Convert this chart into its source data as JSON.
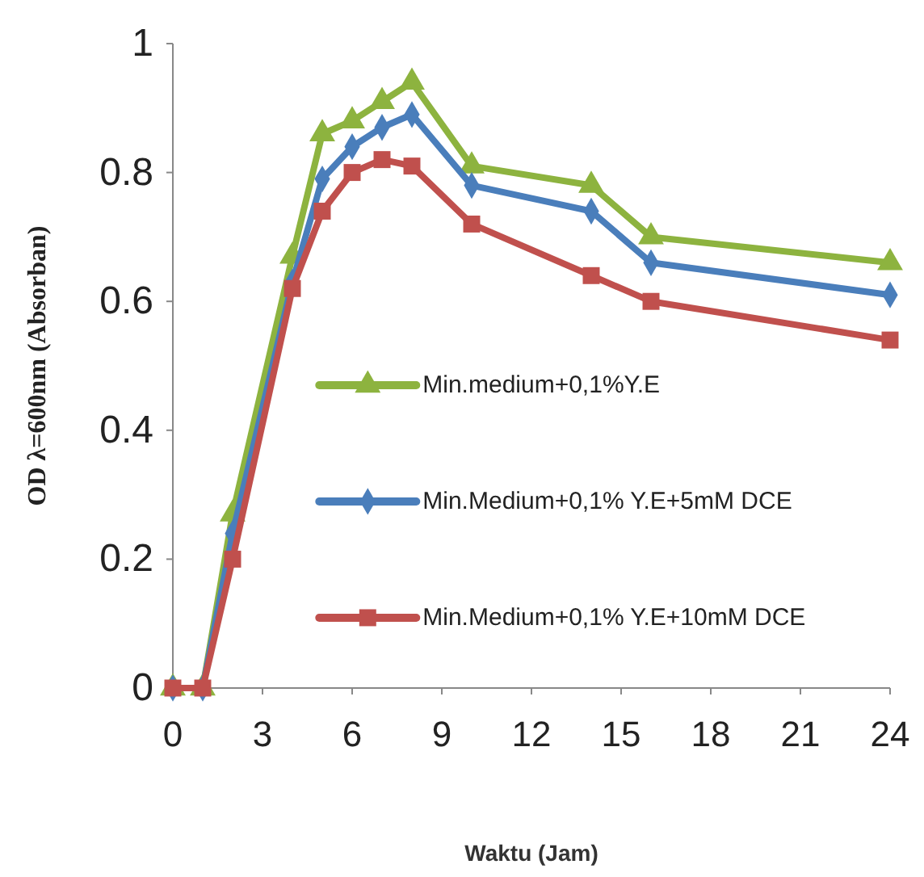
{
  "chart_data": {
    "type": "line",
    "xlabel": "Waktu (Jam)",
    "ylabel": "OD λ=600nm (Absorban)",
    "x": [
      0,
      1,
      2,
      4,
      5,
      6,
      7,
      8,
      10,
      14,
      16,
      24
    ],
    "xlim": [
      0,
      24
    ],
    "xticks": [
      0,
      3,
      6,
      9,
      12,
      15,
      18,
      21,
      24
    ],
    "ylim": [
      0,
      1
    ],
    "yticks": [
      0,
      0.2,
      0.4,
      0.6,
      0.8,
      1
    ],
    "grid": false,
    "legend": "right",
    "line_style": "solid",
    "series": [
      {
        "name": "Min.medium+0,1%Y.E",
        "color": "#8db33f",
        "marker": "triangle",
        "values": [
          0,
          0,
          0.27,
          0.67,
          0.86,
          0.88,
          0.91,
          0.94,
          0.81,
          0.78,
          0.7,
          0.66
        ]
      },
      {
        "name": "Min.Medium+0,1% Y.E+5mM DCE",
        "color": "#4a7ebb",
        "marker": "diamond",
        "values": [
          0,
          0,
          0.24,
          0.63,
          0.79,
          0.84,
          0.87,
          0.89,
          0.78,
          0.74,
          0.66,
          0.61
        ]
      },
      {
        "name": "Min.Medium+0,1% Y.E+10mM DCE",
        "color": "#c0504d",
        "marker": "square",
        "values": [
          0,
          0,
          0.2,
          0.62,
          0.74,
          0.8,
          0.82,
          0.81,
          0.72,
          0.64,
          0.6,
          0.54
        ]
      }
    ]
  }
}
